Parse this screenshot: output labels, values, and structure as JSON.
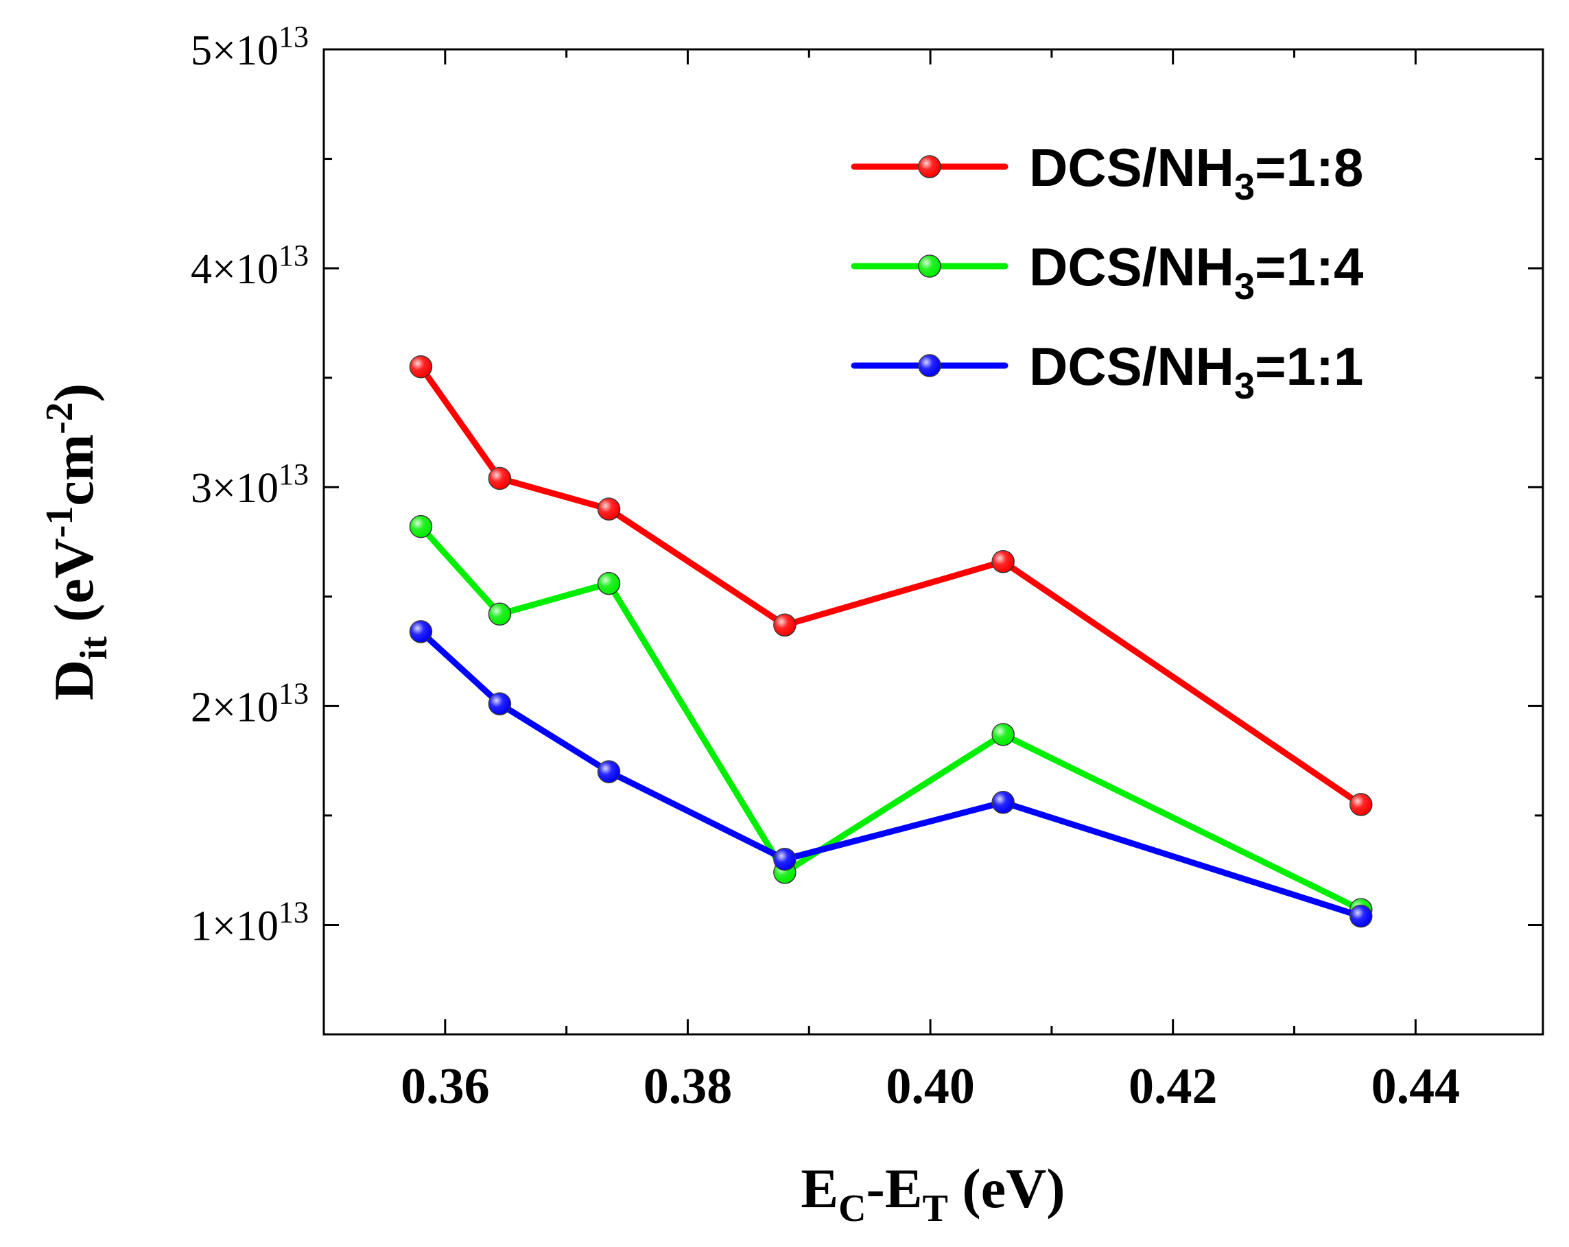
{
  "chart_data": {
    "type": "line",
    "title": "",
    "xlabel": {
      "main": "E",
      "sub1": "C",
      "mid": "-E",
      "sub2": "T",
      "tail": " (eV)"
    },
    "ylabel": {
      "main": "D",
      "sub": "it",
      "mid": " (eV",
      "sup1": "-1",
      "mid2": "cm",
      "sup2": "-2",
      "tail": ")"
    },
    "xlim": [
      0.35,
      0.4505
    ],
    "ylim": [
      5000000000000.0,
      50000000000000.0
    ],
    "xticks": [
      {
        "value": 0.36,
        "label": "0.36"
      },
      {
        "value": 0.38,
        "label": "0.38"
      },
      {
        "value": 0.4,
        "label": "0.40"
      },
      {
        "value": 0.42,
        "label": "0.42"
      },
      {
        "value": 0.44,
        "label": "0.44"
      }
    ],
    "yticks": [
      {
        "value": 10000000000000.0,
        "mantissa": "1×10",
        "exp": "13"
      },
      {
        "value": 20000000000000.0,
        "mantissa": "2×10",
        "exp": "13"
      },
      {
        "value": 30000000000000.0,
        "mantissa": "3×10",
        "exp": "13"
      },
      {
        "value": 40000000000000.0,
        "mantissa": "4×10",
        "exp": "13"
      },
      {
        "value": 50000000000000.0,
        "mantissa": "5×10",
        "exp": "13"
      }
    ],
    "x": [
      0.358,
      0.3645,
      0.3735,
      0.388,
      0.406,
      0.4355
    ],
    "series": [
      {
        "name": "DCS/NH3=1:8",
        "label_main": "DCS/NH",
        "label_sub": "3",
        "label_tail": "=1:8",
        "color": "#ff0000",
        "values": [
          35500000000000.0,
          30400000000000.0,
          29000000000000.0,
          23700000000000.0,
          26600000000000.0,
          15500000000000.0
        ]
      },
      {
        "name": "DCS/NH3=1:4",
        "label_main": "DCS/NH",
        "label_sub": "3",
        "label_tail": "=1:4",
        "color": "#00ee00",
        "values": [
          28200000000000.0,
          24200000000000.0,
          25600000000000.0,
          12400000000000.0,
          18700000000000.0,
          10700000000000.0
        ]
      },
      {
        "name": "DCS/NH3=1:1",
        "label_main": "DCS/NH",
        "label_sub": "3",
        "label_tail": "=1:1",
        "color": "#0000ff",
        "values": [
          23400000000000.0,
          20100000000000.0,
          17000000000000.0,
          13000000000000.0,
          15600000000000.0,
          10400000000000.0
        ]
      }
    ],
    "legend_position": "top-right",
    "grid": false
  }
}
